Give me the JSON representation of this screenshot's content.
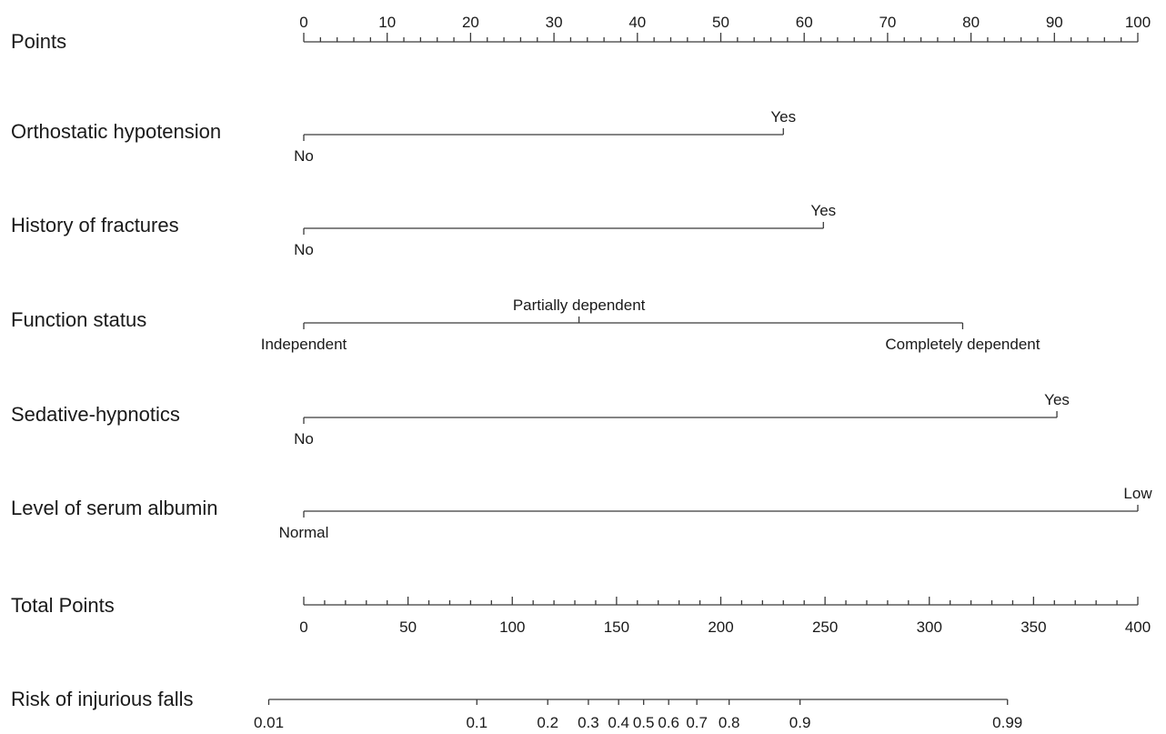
{
  "chart_data": {
    "type": "nomogram",
    "points_axis": {
      "label": "Points",
      "range": [
        0,
        100
      ],
      "major_ticks": [
        0,
        10,
        20,
        30,
        40,
        50,
        60,
        70,
        80,
        90,
        100
      ],
      "tick_labels": [
        "0",
        "10",
        "20",
        "30",
        "40",
        "50",
        "60",
        "70",
        "80",
        "90",
        "100"
      ],
      "minor_step": 2
    },
    "variables": [
      {
        "label": "Orthostatic hypotension",
        "levels": [
          {
            "name": "No",
            "points": 0,
            "side": "below"
          },
          {
            "name": "Yes",
            "points": 57.5,
            "side": "above"
          }
        ]
      },
      {
        "label": "History of fractures",
        "levels": [
          {
            "name": "No",
            "points": 0,
            "side": "below"
          },
          {
            "name": "Yes",
            "points": 62.3,
            "side": "above"
          }
        ]
      },
      {
        "label": "Function status",
        "levels": [
          {
            "name": "Independent",
            "points": 0,
            "side": "below"
          },
          {
            "name": "Partially dependent",
            "points": 33.0,
            "side": "above"
          },
          {
            "name": "Completely dependent",
            "points": 79.0,
            "side": "below"
          }
        ]
      },
      {
        "label": "Sedative-hypnotics",
        "levels": [
          {
            "name": "No",
            "points": 0,
            "side": "below"
          },
          {
            "name": "Yes",
            "points": 90.3,
            "side": "above"
          }
        ]
      },
      {
        "label": "Level of serum albumin",
        "levels": [
          {
            "name": "Normal",
            "points": 0,
            "side": "below"
          },
          {
            "name": "Low",
            "points": 100,
            "side": "above"
          }
        ]
      }
    ],
    "total_points_axis": {
      "label": "Total Points",
      "range": [
        0,
        400
      ],
      "major_ticks": [
        0,
        50,
        100,
        150,
        200,
        250,
        300,
        350,
        400
      ],
      "tick_labels": [
        "0",
        "50",
        "100",
        "150",
        "200",
        "250",
        "300",
        "350",
        "400"
      ],
      "minor_step": 10
    },
    "risk_axis": {
      "label": "Risk of injurious falls",
      "ticks": [
        {
          "label": "0.01",
          "total_points": -16.8
        },
        {
          "label": "0.1",
          "total_points": 83.0
        },
        {
          "label": "0.2",
          "total_points": 117.0
        },
        {
          "label": "0.3",
          "total_points": 136.5
        },
        {
          "label": "0.4",
          "total_points": 151.0
        },
        {
          "label": "0.5",
          "total_points": 163.0
        },
        {
          "label": "0.6",
          "total_points": 175.0
        },
        {
          "label": "0.7",
          "total_points": 188.5
        },
        {
          "label": "0.8",
          "total_points": 204.0
        },
        {
          "label": "0.9",
          "total_points": 238.0
        },
        {
          "label": "0.99",
          "total_points": 337.5
        }
      ]
    }
  }
}
